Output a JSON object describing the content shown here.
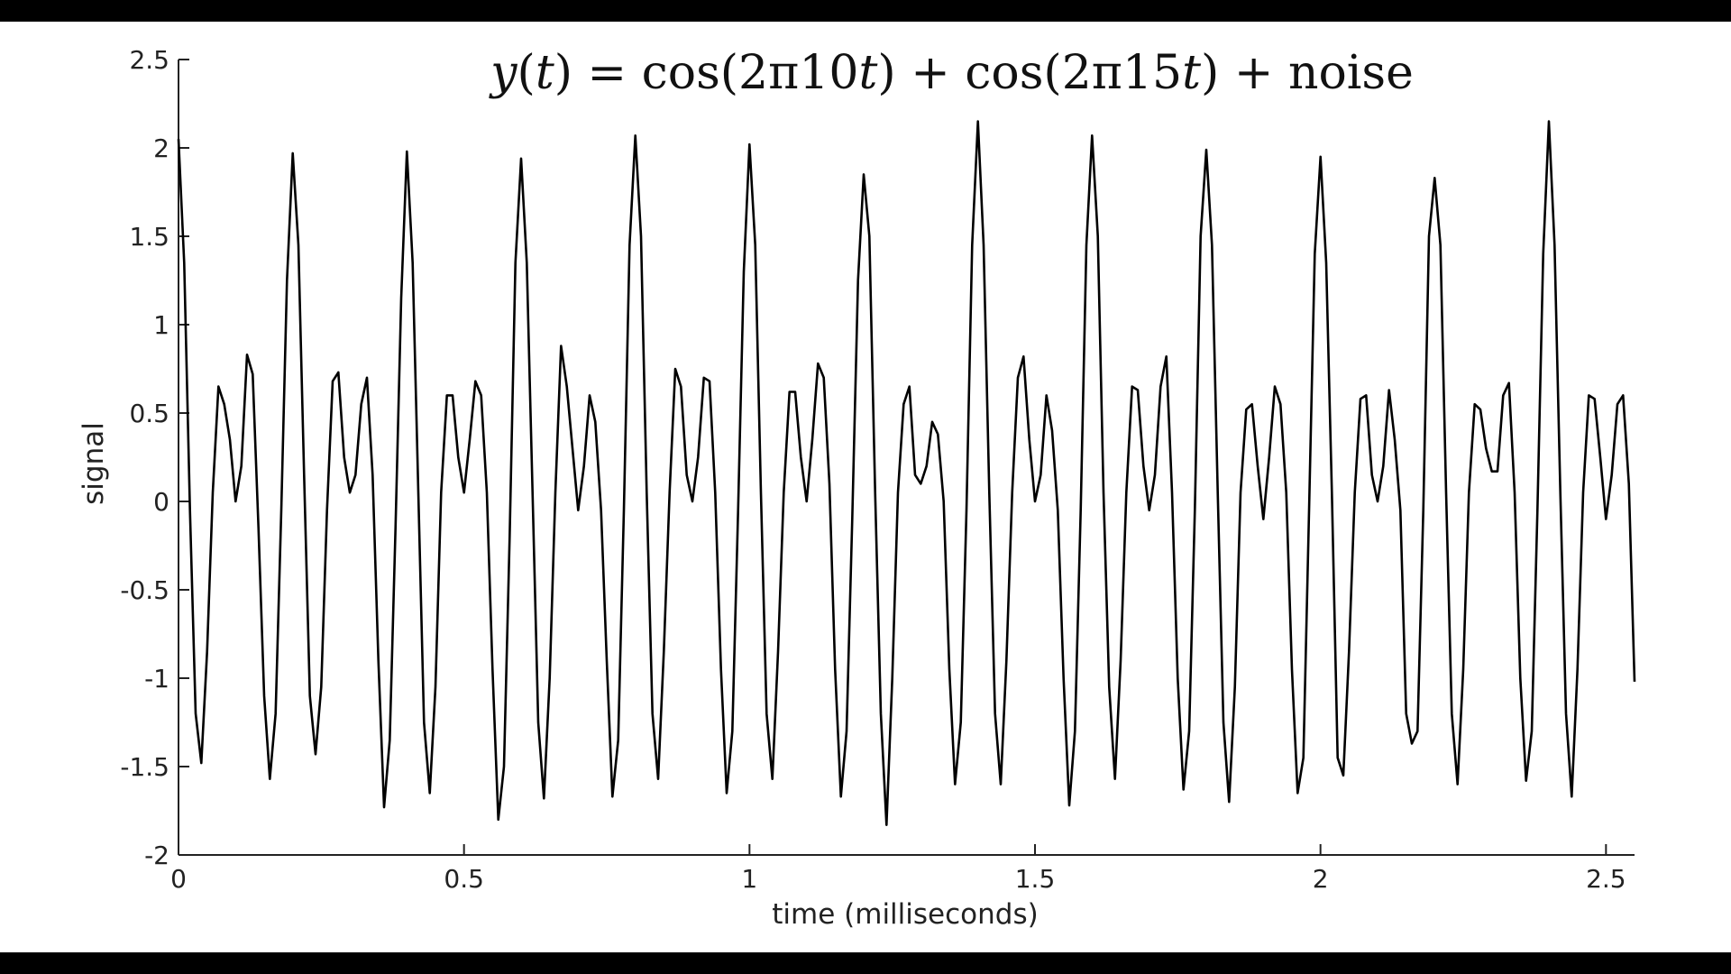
{
  "chart_data": {
    "type": "line",
    "title_parts": [
      {
        "text": "y",
        "italic": true
      },
      {
        "text": "(",
        "italic": false
      },
      {
        "text": "t",
        "italic": true
      },
      {
        "text": ") = cos(2π10",
        "italic": false
      },
      {
        "text": "t",
        "italic": true
      },
      {
        "text": ") + cos(2π15",
        "italic": false
      },
      {
        "text": "t",
        "italic": true
      },
      {
        "text": ") + noise",
        "italic": false
      }
    ],
    "xlabel": "time (milliseconds)",
    "ylabel": "signal",
    "xlim": [
      0,
      2.55
    ],
    "ylim": [
      -2,
      2.5
    ],
    "xticks": [
      0,
      0.5,
      1,
      1.5,
      2,
      2.5
    ],
    "xtick_labels": [
      "0",
      "0.5",
      "1",
      "1.5",
      "2",
      "2.5"
    ],
    "yticks": [
      -2,
      -1.5,
      -1,
      -0.5,
      0,
      0.5,
      1,
      1.5,
      2,
      2.5
    ],
    "ytick_labels": [
      "-2",
      "-1.5",
      "-1",
      "-0.5",
      "0",
      "0.5",
      "1",
      "1.5",
      "2",
      "2.5"
    ],
    "grid": false,
    "line_color": "#000000",
    "series": [
      {
        "x": [
          0,
          0.01,
          0.02,
          0.03,
          0.04,
          0.05,
          0.06,
          0.07,
          0.08,
          0.09,
          0.1,
          0.11,
          0.12,
          0.13,
          0.14,
          0.15,
          0.16,
          0.17,
          0.18,
          0.19,
          0.2,
          0.21,
          0.22,
          0.23,
          0.24,
          0.25,
          0.26,
          0.27,
          0.28,
          0.29,
          0.3,
          0.31,
          0.32,
          0.33,
          0.34,
          0.35,
          0.36,
          0.37,
          0.38,
          0.39,
          0.4,
          0.41,
          0.42,
          0.43,
          0.44,
          0.45,
          0.46,
          0.47,
          0.48,
          0.49,
          0.5,
          0.51,
          0.52,
          0.53,
          0.54,
          0.55,
          0.56,
          0.57,
          0.58,
          0.59,
          0.6,
          0.61,
          0.62,
          0.63,
          0.64,
          0.65,
          0.66,
          0.67,
          0.68,
          0.69,
          0.7,
          0.71,
          0.72,
          0.73,
          0.74,
          0.75,
          0.76,
          0.77,
          0.78,
          0.79,
          0.8,
          0.81,
          0.82,
          0.83,
          0.84,
          0.85,
          0.86,
          0.87,
          0.88,
          0.89,
          0.9,
          0.91,
          0.92,
          0.93,
          0.94,
          0.95,
          0.96,
          0.97,
          0.98,
          0.99,
          1,
          1.01,
          1.02,
          1.03,
          1.04,
          1.05,
          1.06,
          1.07,
          1.08,
          1.09,
          1.1,
          1.11,
          1.12,
          1.13,
          1.14,
          1.15,
          1.16,
          1.17,
          1.18,
          1.19,
          1.2,
          1.21,
          1.22,
          1.23,
          1.24,
          1.25,
          1.26,
          1.27,
          1.28,
          1.29,
          1.3,
          1.31,
          1.32,
          1.33,
          1.34,
          1.35,
          1.36,
          1.37,
          1.38,
          1.39,
          1.4,
          1.41,
          1.42,
          1.43,
          1.44,
          1.45,
          1.46,
          1.47,
          1.48,
          1.49,
          1.5,
          1.51,
          1.52,
          1.53,
          1.54,
          1.55,
          1.56,
          1.57,
          1.58,
          1.59,
          1.6,
          1.61,
          1.62,
          1.63,
          1.64,
          1.65,
          1.66,
          1.67,
          1.68,
          1.69,
          1.7,
          1.71,
          1.72,
          1.73,
          1.74,
          1.75,
          1.76,
          1.77,
          1.78,
          1.79,
          1.8,
          1.81,
          1.82,
          1.83,
          1.84,
          1.85,
          1.86,
          1.87,
          1.88,
          1.89,
          1.9,
          1.91,
          1.92,
          1.93,
          1.94,
          1.95,
          1.96,
          1.97,
          1.98,
          1.99,
          2,
          2.01,
          2.02,
          2.03,
          2.04,
          2.05,
          2.06,
          2.07,
          2.08,
          2.09,
          2.1,
          2.11,
          2.12,
          2.13,
          2.14,
          2.15,
          2.16,
          2.17,
          2.18,
          2.19,
          2.2,
          2.21,
          2.22,
          2.23,
          2.24,
          2.25,
          2.26,
          2.27,
          2.28,
          2.29,
          2.3,
          2.31,
          2.32,
          2.33,
          2.34,
          2.35,
          2.36,
          2.37,
          2.38,
          2.39,
          2.4,
          2.41,
          2.42,
          2.43,
          2.44,
          2.45,
          2.46,
          2.47,
          2.48,
          2.49,
          2.5,
          2.51,
          2.52,
          2.53,
          2.54,
          2.55
        ],
        "y": [
          2.05,
          1.35,
          -0.05,
          -1.2,
          -1.48,
          -0.85,
          0.05,
          0.65,
          0.55,
          0.35,
          0,
          0.2,
          0.83,
          0.72,
          -0.15,
          -1.1,
          -1.57,
          -1.2,
          -0.05,
          1.25,
          1.97,
          1.45,
          0.15,
          -1.1,
          -1.43,
          -1.05,
          -0.05,
          0.68,
          0.73,
          0.25,
          0.05,
          0.15,
          0.55,
          0.7,
          0.15,
          -0.9,
          -1.73,
          -1.35,
          -0.15,
          1.15,
          1.98,
          1.35,
          0.05,
          -1.25,
          -1.65,
          -1.05,
          0.05,
          0.6,
          0.6,
          0.25,
          0.05,
          0.35,
          0.68,
          0.6,
          0.05,
          -0.95,
          -1.8,
          -1.5,
          -0.2,
          1.35,
          1.94,
          1.35,
          0.05,
          -1.25,
          -1.68,
          -1.0,
          0.05,
          0.88,
          0.65,
          0.3,
          -0.05,
          0.2,
          0.6,
          0.45,
          -0.05,
          -0.9,
          -1.67,
          -1.35,
          -0.05,
          1.45,
          2.07,
          1.5,
          0.05,
          -1.2,
          -1.57,
          -0.85,
          0.05,
          0.75,
          0.65,
          0.15,
          0,
          0.25,
          0.7,
          0.68,
          0.05,
          -0.95,
          -1.65,
          -1.3,
          -0.05,
          1.3,
          2.02,
          1.45,
          0.05,
          -1.2,
          -1.57,
          -0.85,
          0.05,
          0.62,
          0.62,
          0.25,
          0,
          0.35,
          0.78,
          0.7,
          0.1,
          -0.95,
          -1.67,
          -1.3,
          -0.1,
          1.25,
          1.85,
          1.5,
          0.05,
          -1.2,
          -1.83,
          -1.0,
          0.05,
          0.55,
          0.65,
          0.15,
          0.1,
          0.2,
          0.45,
          0.38,
          0,
          -0.95,
          -1.6,
          -1.25,
          -0.05,
          1.45,
          2.15,
          1.45,
          0.05,
          -1.2,
          -1.6,
          -0.9,
          0.05,
          0.7,
          0.82,
          0.35,
          0,
          0.15,
          0.6,
          0.4,
          -0.05,
          -1.0,
          -1.72,
          -1.3,
          -0.05,
          1.45,
          2.07,
          1.5,
          0.05,
          -1.05,
          -1.57,
          -0.9,
          0.05,
          0.65,
          0.63,
          0.2,
          -0.05,
          0.15,
          0.65,
          0.82,
          0.05,
          -1.0,
          -1.63,
          -1.3,
          -0.05,
          1.5,
          1.99,
          1.45,
          0.05,
          -1.25,
          -1.7,
          -1.05,
          0.05,
          0.52,
          0.55,
          0.2,
          -0.1,
          0.25,
          0.65,
          0.55,
          0.05,
          -0.95,
          -1.65,
          -1.45,
          -0.05,
          1.4,
          1.95,
          1.35,
          0.05,
          -1.45,
          -1.55,
          -0.85,
          0.05,
          0.58,
          0.6,
          0.15,
          0,
          0.2,
          0.63,
          0.35,
          -0.05,
          -1.2,
          -1.37,
          -1.3,
          -0.05,
          1.5,
          1.83,
          1.45,
          0.05,
          -1.2,
          -1.6,
          -0.95,
          0.05,
          0.55,
          0.52,
          0.3,
          0.17,
          0.17,
          0.6,
          0.67,
          0.05,
          -1.0,
          -1.58,
          -1.3,
          -0.05,
          1.4,
          2.15,
          1.45,
          0.05,
          -1.2,
          -1.67,
          -0.95,
          0.05,
          0.6,
          0.58,
          0.25,
          -0.1,
          0.15,
          0.55,
          0.6,
          0.1,
          -1.02
        ]
      }
    ]
  }
}
